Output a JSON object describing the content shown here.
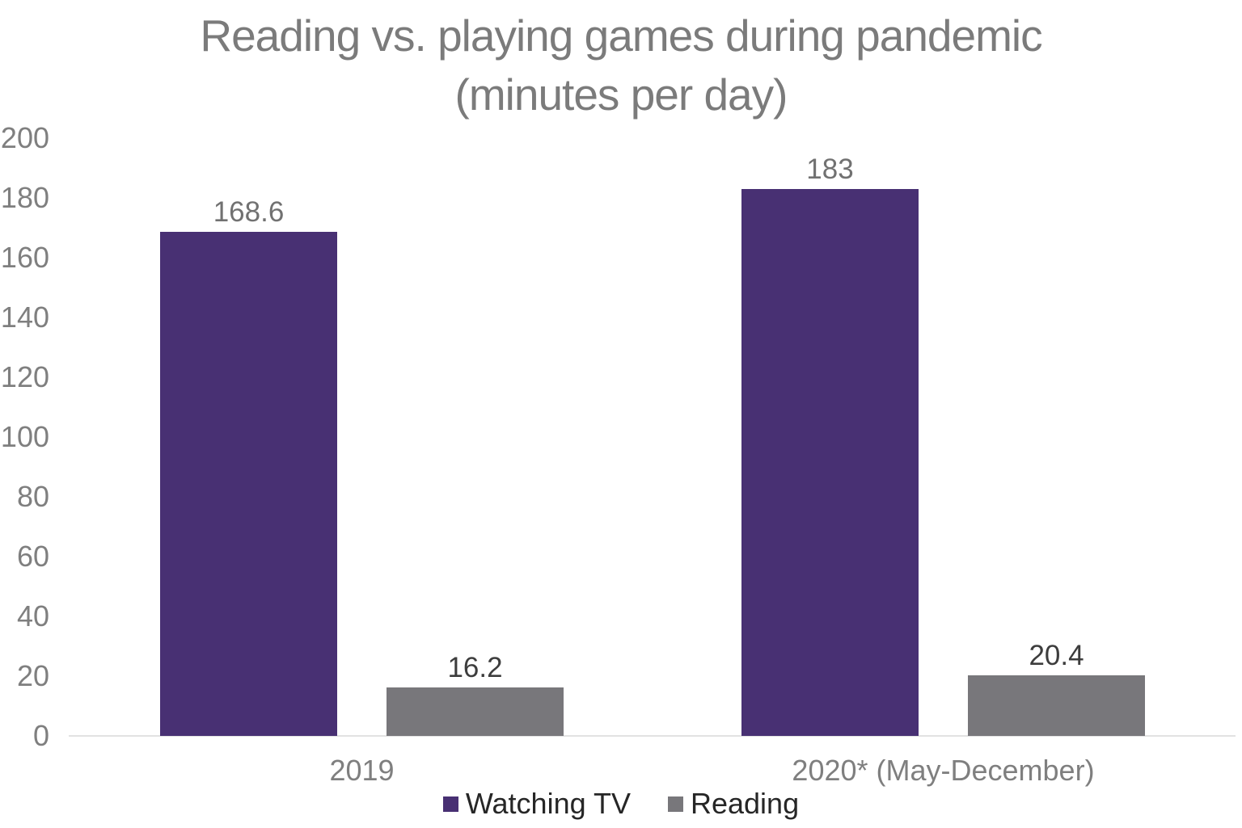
{
  "title": {
    "line1": "Reading vs. playing games during pandemic",
    "line2": "(minutes per day)"
  },
  "colors": {
    "watching_tv": "#483073",
    "reading": "#78777B",
    "axis_line": "#E2E2E2",
    "title_text": "#7B7B7B",
    "tick_text": "#7F7F7F",
    "category_text": "#7F7F7F",
    "tv_value_label": "#717171",
    "reading_value_label": "#3D3D3D",
    "legend_text": "#262626"
  },
  "chart_data": {
    "type": "bar",
    "title": "Reading vs. playing games during pandemic (minutes per day)",
    "categories": [
      "2019",
      "2020* (May-December)"
    ],
    "series": [
      {
        "name": "Watching TV",
        "color": "#483073",
        "values": [
          168.6,
          183
        ],
        "value_labels": [
          "168.6",
          "183"
        ],
        "label_color": "#717171"
      },
      {
        "name": "Reading",
        "color": "#78777B",
        "values": [
          16.2,
          20.4
        ],
        "value_labels": [
          "16.2",
          "20.4"
        ],
        "label_color": "#3D3D3D"
      }
    ],
    "xlabel": "",
    "ylabel": "",
    "ylim": [
      0,
      200
    ],
    "yticks": [
      0,
      20,
      40,
      60,
      80,
      100,
      120,
      140,
      160,
      180,
      200
    ],
    "grid": false,
    "legend_position": "bottom"
  }
}
